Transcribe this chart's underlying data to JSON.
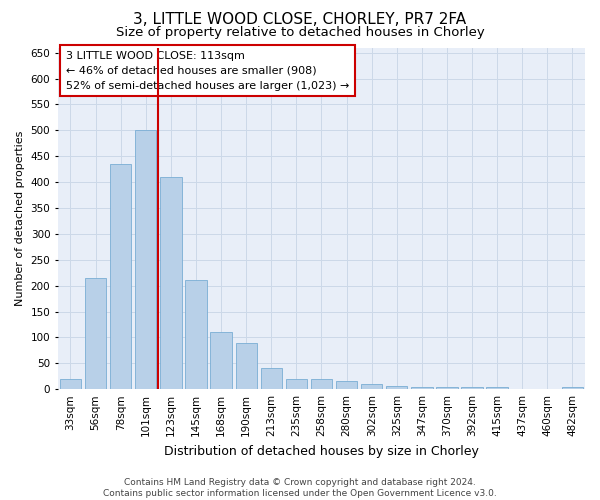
{
  "title": "3, LITTLE WOOD CLOSE, CHORLEY, PR7 2FA",
  "subtitle": "Size of property relative to detached houses in Chorley",
  "xlabel": "Distribution of detached houses by size in Chorley",
  "ylabel": "Number of detached properties",
  "categories": [
    "33sqm",
    "56sqm",
    "78sqm",
    "101sqm",
    "123sqm",
    "145sqm",
    "168sqm",
    "190sqm",
    "213sqm",
    "235sqm",
    "258sqm",
    "280sqm",
    "302sqm",
    "325sqm",
    "347sqm",
    "370sqm",
    "392sqm",
    "415sqm",
    "437sqm",
    "460sqm",
    "482sqm"
  ],
  "values": [
    20,
    215,
    435,
    500,
    410,
    210,
    110,
    90,
    40,
    20,
    20,
    15,
    10,
    6,
    5,
    5,
    5,
    5,
    1,
    1,
    5
  ],
  "bar_color": "#b8d0e8",
  "bar_edge_color": "#7aadd4",
  "bar_linewidth": 0.6,
  "vline_color": "#cc0000",
  "vline_x": 3.5,
  "annotation_line1": "3 LITTLE WOOD CLOSE: 113sqm",
  "annotation_line2": "← 46% of detached houses are smaller (908)",
  "annotation_line3": "52% of semi-detached houses are larger (1,023) →",
  "ylim": [
    0,
    660
  ],
  "yticks": [
    0,
    50,
    100,
    150,
    200,
    250,
    300,
    350,
    400,
    450,
    500,
    550,
    600,
    650
  ],
  "grid_color": "#ccd8e8",
  "background_color": "#e8eef8",
  "footer_text": "Contains HM Land Registry data © Crown copyright and database right 2024.\nContains public sector information licensed under the Open Government Licence v3.0.",
  "title_fontsize": 11,
  "subtitle_fontsize": 9.5,
  "xlabel_fontsize": 9,
  "ylabel_fontsize": 8,
  "tick_fontsize": 7.5,
  "annotation_fontsize": 8,
  "footer_fontsize": 6.5
}
